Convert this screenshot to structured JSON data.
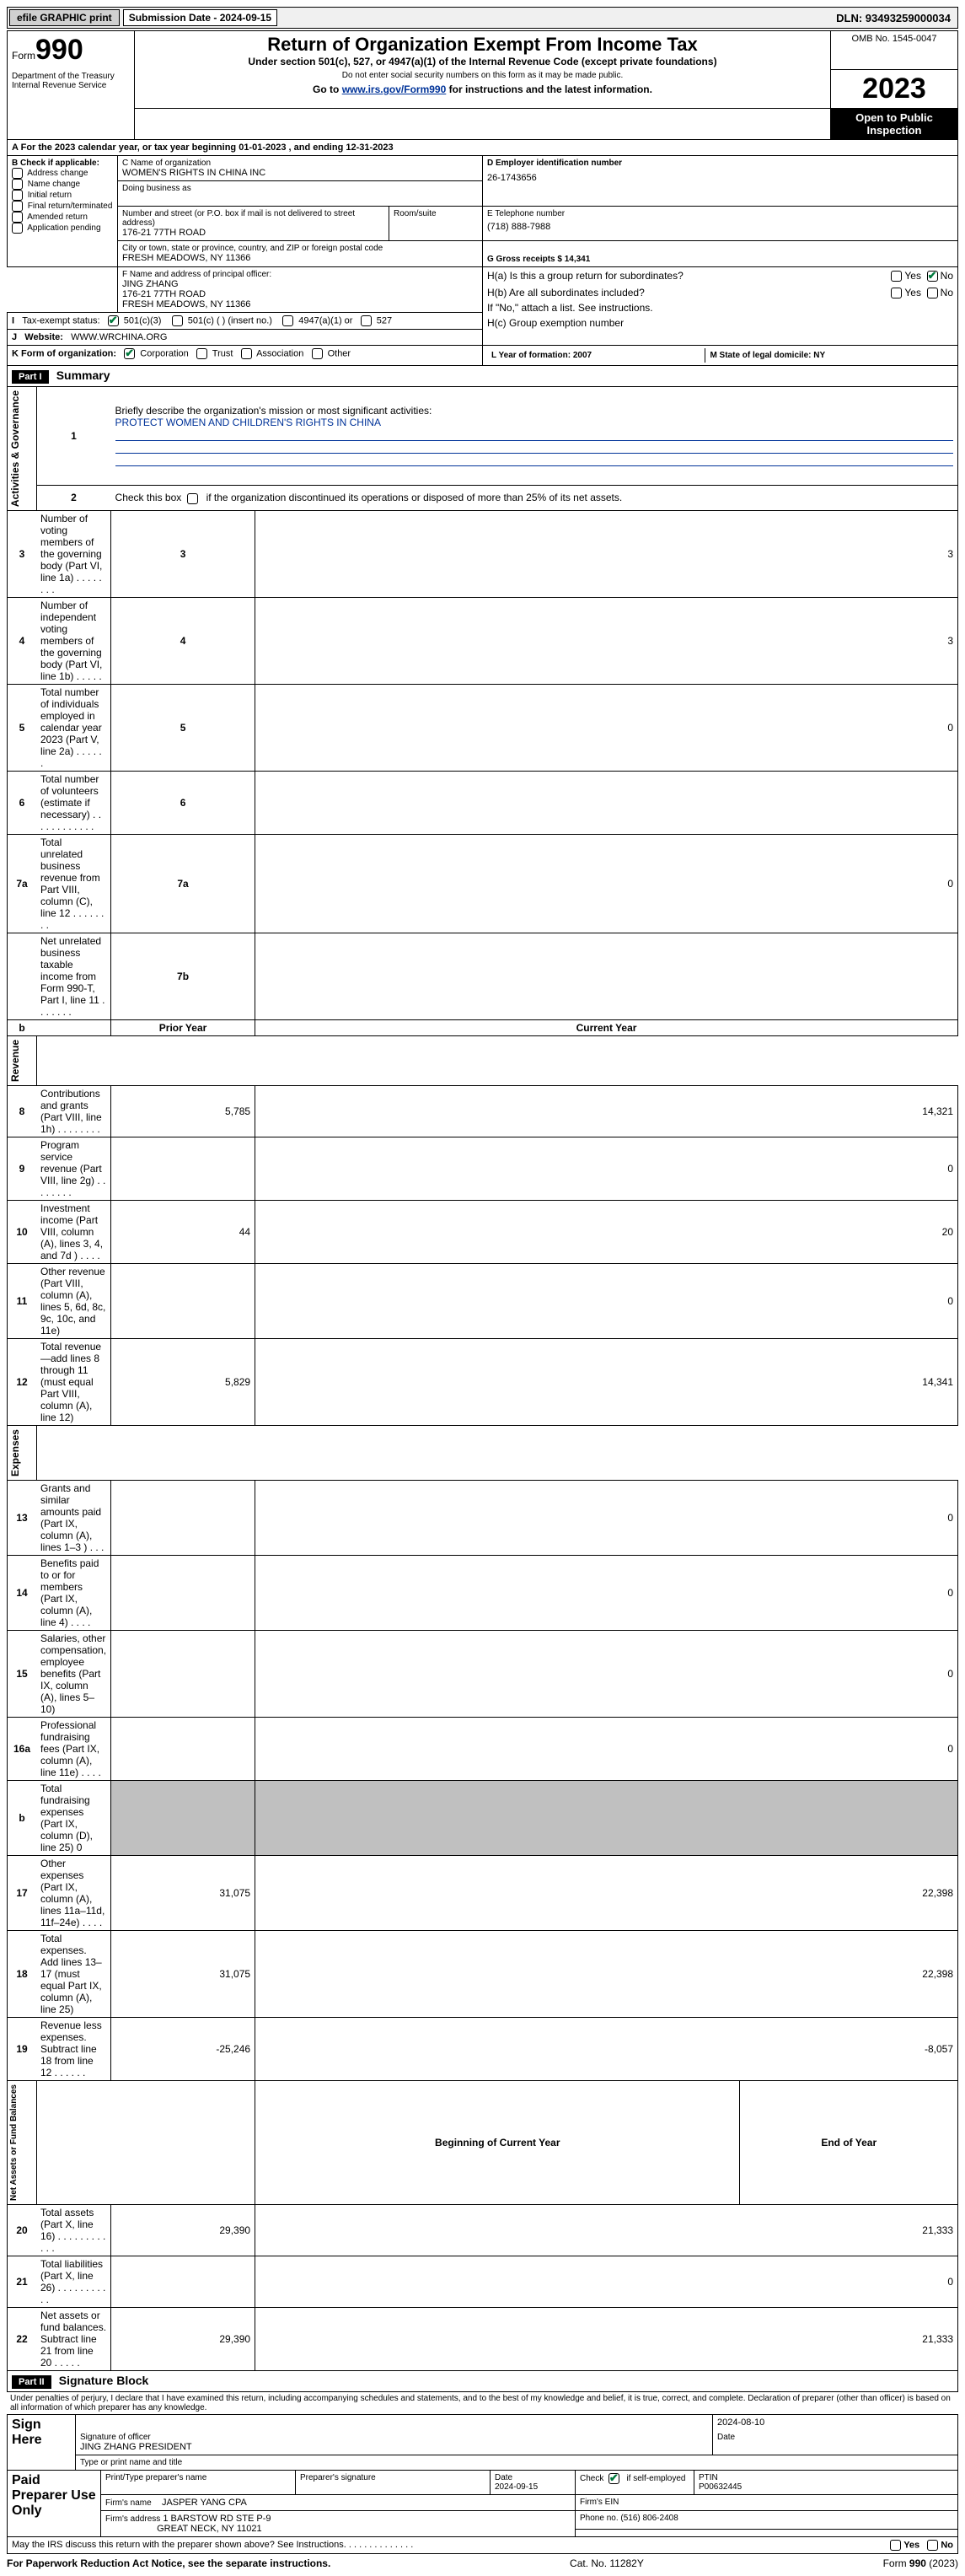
{
  "topbar": {
    "efile": "efile GRAPHIC print",
    "submission_label": "Submission Date - 2024-09-15",
    "dln_label": "DLN: 93493259000034"
  },
  "header": {
    "form_prefix": "Form",
    "form_number": "990",
    "dept": "Department of the Treasury\nInternal Revenue Service",
    "title": "Return of Organization Exempt From Income Tax",
    "sub1": "Under section 501(c), 527, or 4947(a)(1) of the Internal Revenue Code (except private foundations)",
    "sub2": "Do not enter social security numbers on this form as it may be made public.",
    "sub3_pre": "Go to ",
    "sub3_link": "www.irs.gov/Form990",
    "sub3_post": " for instructions and the latest information.",
    "omb": "OMB No. 1545-0047",
    "year": "2023",
    "open": "Open to Public Inspection"
  },
  "A": {
    "text": "For the 2023 calendar year, or tax year beginning 01-01-2023    , and ending 12-31-2023"
  },
  "B": {
    "label": "B Check if applicable:",
    "opts": [
      "Address change",
      "Name change",
      "Initial return",
      "Final return/terminated",
      "Amended return",
      "Application pending"
    ]
  },
  "C": {
    "name_lbl": "C Name of organization",
    "name": "WOMEN'S RIGHTS IN CHINA INC",
    "dba_lbl": "Doing business as",
    "street_lbl": "Number and street (or P.O. box if mail is not delivered to street address)",
    "street": "176-21 77TH ROAD",
    "room_lbl": "Room/suite",
    "city_lbl": "City or town, state or province, country, and ZIP or foreign postal code",
    "city": "FRESH MEADOWS, NY  11366"
  },
  "D": {
    "lbl": "D Employer identification number",
    "val": "26-1743656"
  },
  "E": {
    "lbl": "E Telephone number",
    "val": "(718) 888-7988"
  },
  "G": {
    "lbl": "G Gross receipts $ 14,341"
  },
  "F": {
    "lbl": "F  Name and address of principal officer:",
    "name": "JING ZHANG",
    "addr1": "176-21 77TH ROAD",
    "addr2": "FRESH MEADOWS, NY  11366"
  },
  "H": {
    "a": "H(a)  Is this a group return for subordinates?",
    "b": "H(b)  Are all subordinates included?",
    "note": "If \"No,\" attach a list. See instructions.",
    "c": "H(c)  Group exemption number",
    "yes": "Yes",
    "no": "No"
  },
  "I": {
    "lbl": "Tax-exempt status:",
    "o1": "501(c)(3)",
    "o2": "501(c) (  ) (insert no.)",
    "o3": "4947(a)(1) or",
    "o4": "527"
  },
  "J": {
    "lbl": "Website:",
    "val": "WWW.WRCHINA.ORG"
  },
  "K": {
    "lbl": "K Form of organization:",
    "o1": "Corporation",
    "o2": "Trust",
    "o3": "Association",
    "o4": "Other"
  },
  "L": {
    "lbl": "L Year of formation: 2007"
  },
  "M": {
    "lbl": "M State of legal domicile: NY"
  },
  "part1": {
    "lbl": "Part I",
    "title": "Summary",
    "q1": "Briefly describe the organization's mission or most significant activities:",
    "mission": "PROTECT WOMEN AND CHILDREN'S RIGHTS IN CHINA",
    "q2": "Check this box           if the organization discontinued its operations or disposed of more than 25% of its net assets.",
    "lines_gov": [
      {
        "n": "3",
        "d": "Number of voting members of the governing body (Part VI, line 1a)   .    .    .    .    .    .    .    .",
        "box": "3",
        "v": "3"
      },
      {
        "n": "4",
        "d": "Number of independent voting members of the governing body (Part VI, line 1b)   .    .    .    .    .",
        "box": "4",
        "v": "3"
      },
      {
        "n": "5",
        "d": "Total number of individuals employed in calendar year 2023 (Part V, line 2a)   .    .    .    .    .    .",
        "box": "5",
        "v": "0"
      },
      {
        "n": "6",
        "d": "Total number of volunteers (estimate if necessary)   .    .    .    .    .    .    .    .    .    .    .    .",
        "box": "6",
        "v": ""
      },
      {
        "n": "7a",
        "d": "Total unrelated business revenue from Part VIII, column (C), line 12   .    .    .    .    .    .    .    .",
        "box": "7a",
        "v": "0"
      },
      {
        "n": "",
        "d": "Net unrelated business taxable income from Form 990-T, Part I, line 11   .    .    .    .    .    .    .",
        "box": "7b",
        "v": ""
      }
    ],
    "col_prior": "Prior Year",
    "col_curr": "Current Year",
    "lines_rev": [
      {
        "n": "8",
        "d": "Contributions and grants (Part VIII, line 1h)   .    .    .    .    .    .    .    .",
        "p": "5,785",
        "c": "14,321"
      },
      {
        "n": "9",
        "d": "Program service revenue (Part VIII, line 2g)   .    .    .    .    .    .    .    .",
        "p": "",
        "c": "0"
      },
      {
        "n": "10",
        "d": "Investment income (Part VIII, column (A), lines 3, 4, and 7d )   .    .    .    .",
        "p": "44",
        "c": "20"
      },
      {
        "n": "11",
        "d": "Other revenue (Part VIII, column (A), lines 5, 6d, 8c, 9c, 10c, and 11e)",
        "p": "",
        "c": "0"
      },
      {
        "n": "12",
        "d": "Total revenue—add lines 8 through 11 (must equal Part VIII, column (A), line 12)",
        "p": "5,829",
        "c": "14,341"
      }
    ],
    "lines_exp": [
      {
        "n": "13",
        "d": "Grants and similar amounts paid (Part IX, column (A), lines 1–3 )   .    .    .",
        "p": "",
        "c": "0"
      },
      {
        "n": "14",
        "d": "Benefits paid to or for members (Part IX, column (A), line 4)   .    .    .    .",
        "p": "",
        "c": "0"
      },
      {
        "n": "15",
        "d": "Salaries, other compensation, employee benefits (Part IX, column (A), lines 5–10)",
        "p": "",
        "c": "0"
      },
      {
        "n": "16a",
        "d": "Professional fundraising fees (Part IX, column (A), line 11e)   .    .    .    .",
        "p": "",
        "c": "0"
      },
      {
        "n": "b",
        "d": "Total fundraising expenses (Part IX, column (D), line 25) 0",
        "p": "shade",
        "c": "shade"
      },
      {
        "n": "17",
        "d": "Other expenses (Part IX, column (A), lines 11a–11d, 11f–24e)   .    .    .    .",
        "p": "31,075",
        "c": "22,398"
      },
      {
        "n": "18",
        "d": "Total expenses. Add lines 13–17 (must equal Part IX, column (A), line 25)",
        "p": "31,075",
        "c": "22,398"
      },
      {
        "n": "19",
        "d": "Revenue less expenses. Subtract line 18 from line 12   .    .    .    .    .    .",
        "p": "-25,246",
        "c": "-8,057"
      }
    ],
    "col_beg": "Beginning of Current Year",
    "col_end": "End of Year",
    "lines_net": [
      {
        "n": "20",
        "d": "Total assets (Part X, line 16)   .    .    .    .    .    .    .    .    .    .    .    .",
        "p": "29,390",
        "c": "21,333"
      },
      {
        "n": "21",
        "d": "Total liabilities (Part X, line 26)   .    .    .    .    .    .    .    .    .    .    .",
        "p": "",
        "c": "0"
      },
      {
        "n": "22",
        "d": "Net assets or fund balances. Subtract line 21 from line 20   .    .    .    .    .",
        "p": "29,390",
        "c": "21,333"
      }
    ],
    "side_gov": "Activities & Governance",
    "side_rev": "Revenue",
    "side_exp": "Expenses",
    "side_net": "Net Assets or Fund Balances"
  },
  "part2": {
    "lbl": "Part II",
    "title": "Signature Block",
    "perjury": "Under penalties of perjury, I declare that I have examined this return, including accompanying schedules and statements, and to the best of my knowledge and belief, it is true, correct, and complete. Declaration of preparer (other than officer) is based on all information of which preparer has any knowledge.",
    "sign_here": "Sign Here",
    "sig_officer": "Signature of officer",
    "officer": "JING ZHANG  PRESIDENT",
    "type_name": "Type or print name and title",
    "date_lbl": "Date",
    "date_val": "2024-08-10",
    "paid": "Paid Preparer Use Only",
    "prep_name_lbl": "Print/Type preparer's name",
    "prep_sig_lbl": "Preparer's signature",
    "prep_date_lbl": "Date",
    "prep_date": "2024-09-15",
    "check_self": "Check          if self-employed",
    "ptin_lbl": "PTIN",
    "ptin": "P00632445",
    "firm_name_lbl": "Firm's name",
    "firm_name": "JASPER YANG CPA",
    "firm_ein_lbl": "Firm's EIN",
    "firm_addr_lbl": "Firm's address",
    "firm_addr1": "1 BARSTOW RD STE P-9",
    "firm_addr2": "GREAT NECK, NY  11021",
    "phone_lbl": "Phone no. (516) 806-2408",
    "discuss": "May the IRS discuss this return with the preparer shown above? See Instructions.    .    .    .    .    .    .    .    .    .    .    .    .    .",
    "yes": "Yes",
    "no": "No"
  },
  "footer": {
    "left": "For Paperwork Reduction Act Notice, see the separate instructions.",
    "mid": "Cat. No. 11282Y",
    "right_pre": "Form ",
    "right_b": "990",
    "right_post": " (2023)"
  }
}
